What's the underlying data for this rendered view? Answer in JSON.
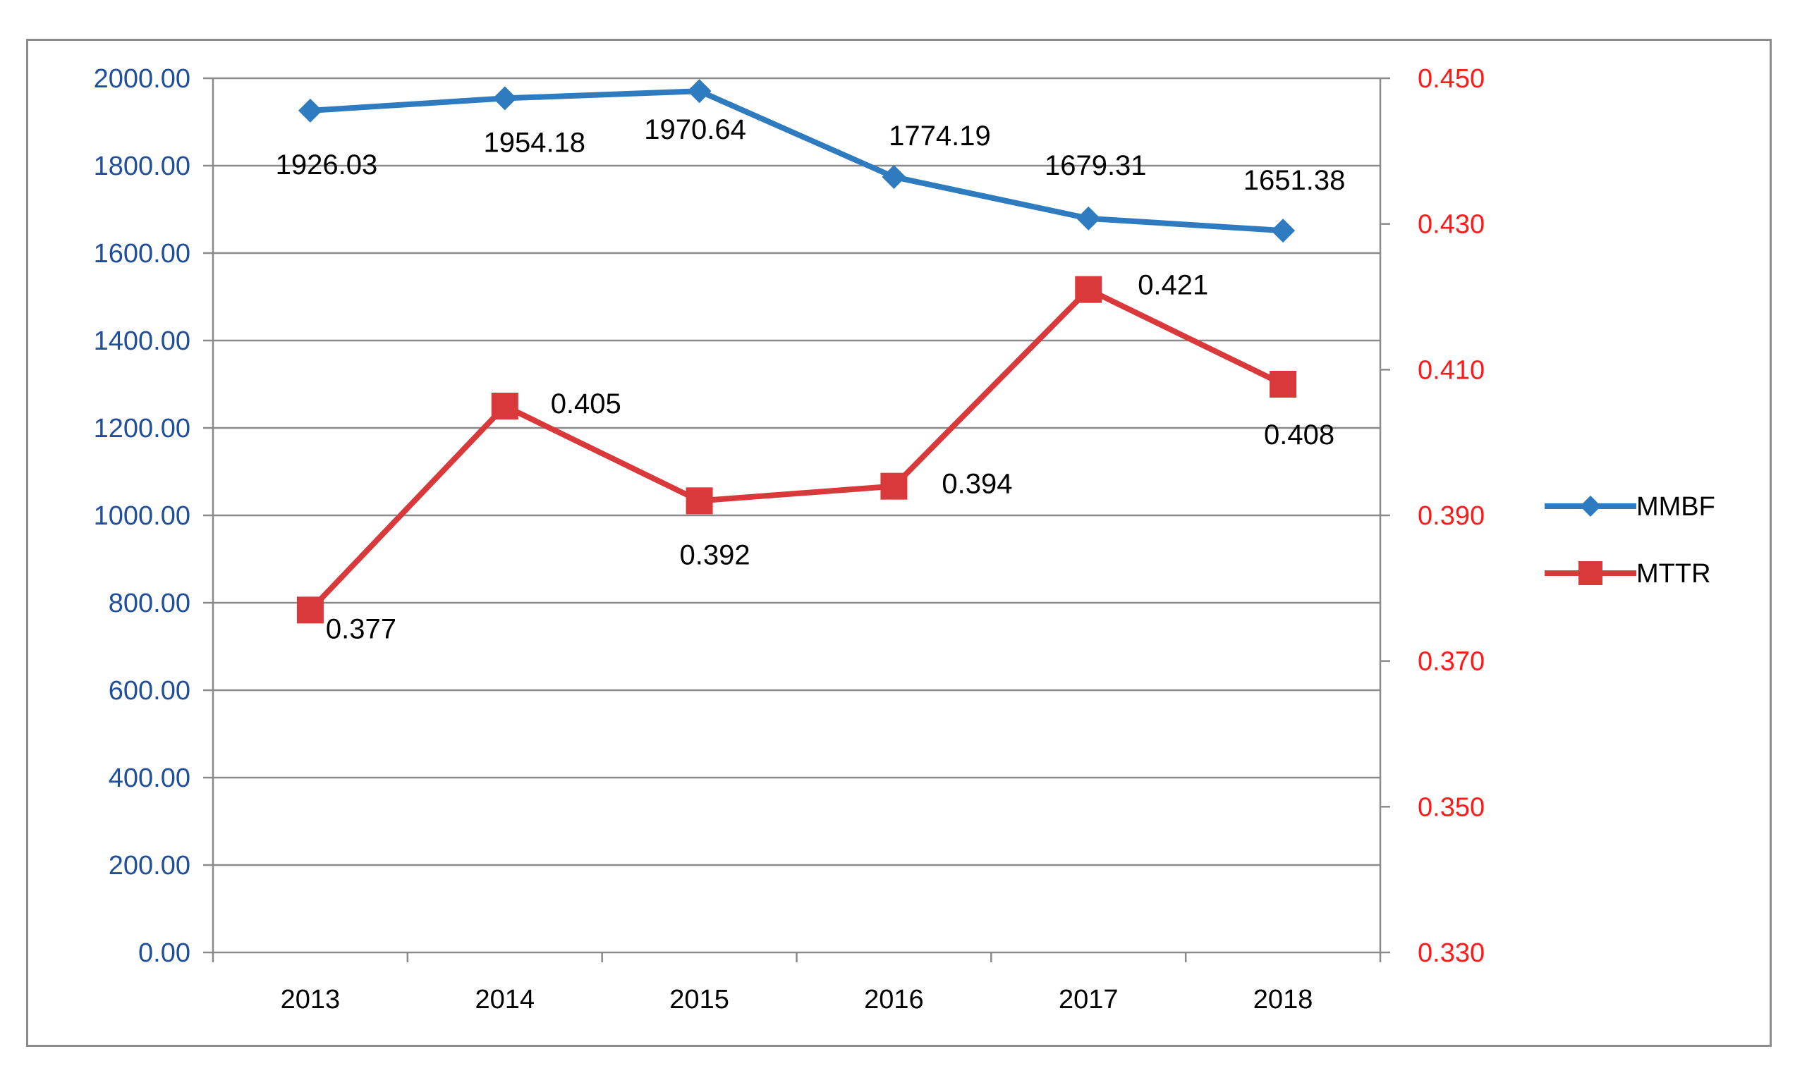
{
  "chart_data": {
    "type": "line",
    "title": "",
    "categories": [
      "2013",
      "2014",
      "2015",
      "2016",
      "2017",
      "2018"
    ],
    "series": [
      {
        "name": "MMBF",
        "axis": "left",
        "color": "#2e7bbf",
        "marker": "diamond",
        "values": [
          1926.03,
          1954.18,
          1970.64,
          1774.19,
          1679.31,
          1651.38
        ],
        "labels": [
          "1926.03",
          "1954.18",
          "1970.64",
          "1774.19",
          "1679.31",
          "1651.38"
        ]
      },
      {
        "name": "MTTR",
        "axis": "right",
        "color": "#d9393b",
        "marker": "square",
        "values": [
          0.377,
          0.405,
          0.392,
          0.394,
          0.421,
          0.408
        ],
        "labels": [
          "0.377",
          "0.405",
          "0.392",
          "0.394",
          "0.421",
          "0.408"
        ]
      }
    ],
    "y_left": {
      "min": 0,
      "max": 2000,
      "step": 200,
      "color": "#1f4e9c",
      "tick_labels": [
        "0.00",
        "200.00",
        "400.00",
        "600.00",
        "800.00",
        "1000.00",
        "1200.00",
        "1400.00",
        "1600.00",
        "1800.00",
        "2000.00"
      ]
    },
    "y_right": {
      "min": 0.33,
      "max": 0.45,
      "step": 0.02,
      "color": "#ff1a1a",
      "tick_labels": [
        "0.330",
        "0.350",
        "0.370",
        "0.390",
        "0.410",
        "0.430",
        "0.450"
      ]
    },
    "grid": true,
    "legend": "right"
  }
}
